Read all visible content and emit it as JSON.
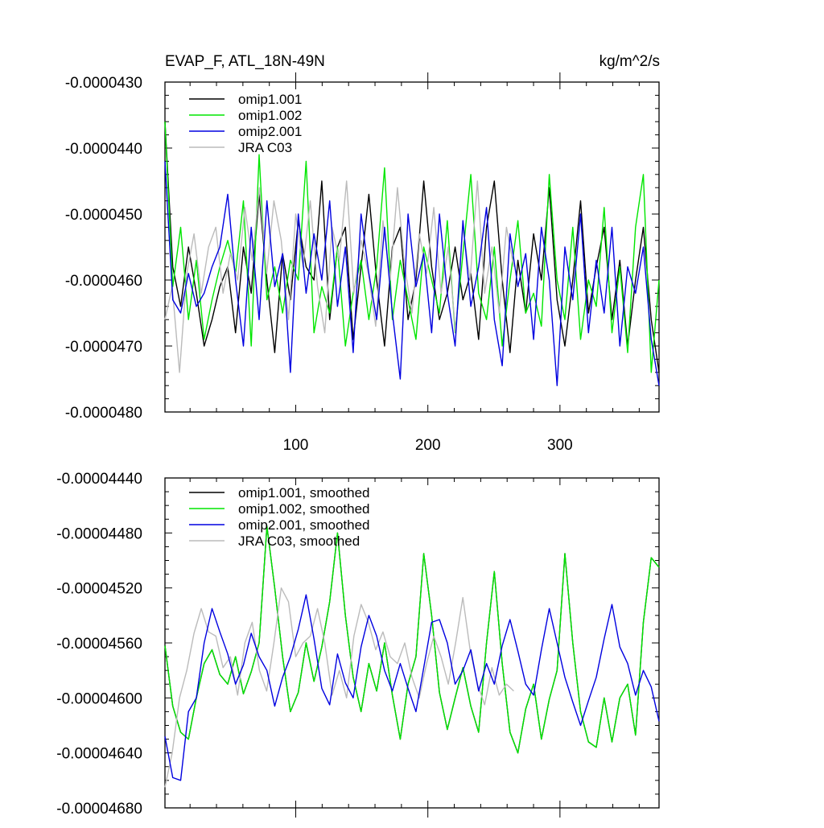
{
  "header": {
    "title": "EVAP_F, ATL_18N-49N",
    "units": "kg/m^2/s"
  },
  "chart_data": [
    {
      "type": "line",
      "title": "EVAP_F, ATL_18N-49N",
      "units": "kg/m^2/s",
      "xlim": [
        1,
        375
      ],
      "ylim": [
        -4.8e-05,
        -4.3e-05
      ],
      "xticks": [
        100,
        200,
        300
      ],
      "yticks": [
        "-0.0000430",
        "-0.0000440",
        "-0.0000450",
        "-0.0000460",
        "-0.0000470",
        "-0.0000480"
      ],
      "legend_position": "top-left",
      "series": [
        {
          "name": "omip1.001",
          "color": "#000000",
          "values": [
            -4.36e-05,
            -4.58e-05,
            -4.64e-05,
            -4.55e-05,
            -4.62e-05,
            -4.7e-05,
            -4.66e-05,
            -4.61e-05,
            -4.58e-05,
            -4.68e-05,
            -4.55e-05,
            -4.62e-05,
            -4.47e-05,
            -4.6e-05,
            -4.71e-05,
            -4.56e-05,
            -4.63e-05,
            -4.51e-05,
            -4.58e-05,
            -4.6e-05,
            -4.45e-05,
            -4.66e-05,
            -4.55e-05,
            -4.52e-05,
            -4.69e-05,
            -4.58e-05,
            -4.47e-05,
            -4.6e-05,
            -4.7e-05,
            -4.55e-05,
            -4.52e-05,
            -4.66e-05,
            -4.6e-05,
            -4.45e-05,
            -4.58e-05,
            -4.66e-05,
            -4.62e-05,
            -4.55e-05,
            -4.63e-05,
            -4.59e-05,
            -4.69e-05,
            -4.52e-05,
            -4.45e-05,
            -4.6e-05,
            -4.71e-05,
            -4.57e-05,
            -4.65e-05,
            -4.53e-05,
            -4.6e-05,
            -4.46e-05,
            -4.63e-05,
            -4.7e-05,
            -4.6e-05,
            -4.48e-05,
            -4.65e-05,
            -4.58e-05,
            -4.52e-05,
            -4.66e-05,
            -4.57e-05,
            -4.7e-05,
            -4.6e-05,
            -4.52e-05,
            -4.66e-05,
            -4.74e-05
          ]
        },
        {
          "name": "omip1.002",
          "color": "#00e600",
          "values": [
            -4.36e-05,
            -4.61e-05,
            -4.52e-05,
            -4.66e-05,
            -4.57e-05,
            -4.69e-05,
            -4.63e-05,
            -4.58e-05,
            -4.54e-05,
            -4.59e-05,
            -4.48e-05,
            -4.7e-05,
            -4.41e-05,
            -4.63e-05,
            -4.58e-05,
            -4.65e-05,
            -4.57e-05,
            -4.6e-05,
            -4.42e-05,
            -4.68e-05,
            -4.61e-05,
            -4.65e-05,
            -4.55e-05,
            -4.7e-05,
            -4.62e-05,
            -4.57e-05,
            -4.66e-05,
            -4.58e-05,
            -4.43e-05,
            -4.66e-05,
            -4.57e-05,
            -4.63e-05,
            -4.69e-05,
            -4.55e-05,
            -4.6e-05,
            -4.65e-05,
            -4.51e-05,
            -4.68e-05,
            -4.56e-05,
            -4.44e-05,
            -4.62e-05,
            -4.66e-05,
            -4.55e-05,
            -4.7e-05,
            -4.6e-05,
            -4.51e-05,
            -4.65e-05,
            -4.62e-05,
            -4.67e-05,
            -4.44e-05,
            -4.6e-05,
            -4.66e-05,
            -4.52e-05,
            -4.69e-05,
            -4.6e-05,
            -4.64e-05,
            -4.49e-05,
            -4.68e-05,
            -4.58e-05,
            -4.71e-05,
            -4.52e-05,
            -4.44e-05,
            -4.74e-05,
            -4.6e-05
          ]
        },
        {
          "name": "omip2.001",
          "color": "#0000e0",
          "values": [
            -4.42e-05,
            -4.63e-05,
            -4.65e-05,
            -4.59e-05,
            -4.64e-05,
            -4.62e-05,
            -4.58e-05,
            -4.55e-05,
            -4.47e-05,
            -4.6e-05,
            -4.7e-05,
            -4.52e-05,
            -4.66e-05,
            -4.48e-05,
            -4.61e-05,
            -4.56e-05,
            -4.74e-05,
            -4.5e-05,
            -4.62e-05,
            -4.53e-05,
            -4.6e-05,
            -4.48e-05,
            -4.64e-05,
            -4.55e-05,
            -4.71e-05,
            -4.5e-05,
            -4.59e-05,
            -4.66e-05,
            -4.52e-05,
            -4.65e-05,
            -4.75e-05,
            -4.5e-05,
            -4.61e-05,
            -4.56e-05,
            -4.68e-05,
            -4.5e-05,
            -4.62e-05,
            -4.7e-05,
            -4.51e-05,
            -4.64e-05,
            -4.58e-05,
            -4.49e-05,
            -4.66e-05,
            -4.73e-05,
            -4.53e-05,
            -4.61e-05,
            -4.56e-05,
            -4.69e-05,
            -4.52e-05,
            -4.6e-05,
            -4.76e-05,
            -4.55e-05,
            -4.63e-05,
            -4.5e-05,
            -4.68e-05,
            -4.57e-05,
            -4.65e-05,
            -4.52e-05,
            -4.7e-05,
            -4.58e-05,
            -4.62e-05,
            -4.55e-05,
            -4.69e-05,
            -4.76e-05
          ]
        },
        {
          "name": "JRA C03",
          "color": "#bbbbbb",
          "values": [
            -4.66e-05,
            -4.61e-05,
            -4.74e-05,
            -4.59e-05,
            -4.53e-05,
            -4.62e-05,
            -4.55e-05,
            -4.52e-05,
            -4.62e-05,
            -4.56e-05,
            -4.6e-05,
            -4.49e-05,
            -4.57e-05,
            -4.46e-05,
            -4.59e-05,
            -4.48e-05,
            -4.54e-05,
            -4.66e-05,
            -4.5e-05,
            -4.58e-05,
            -4.48e-05,
            -4.61e-05,
            -4.68e-05,
            -4.52e-05,
            -4.57e-05,
            -4.45e-05,
            -4.62e-05,
            -4.54e-05,
            -4.59e-05,
            -4.67e-05,
            -4.51e-05,
            -4.6e-05,
            -4.46e-05,
            -4.58e-05,
            -4.65e-05,
            -4.53e-05,
            -4.59e-05,
            -4.49e-05,
            -4.62e-05,
            -4.55e-05,
            -4.68e-05,
            -4.52e-05,
            -4.6e-05,
            -4.45e-05,
            -4.62e-05,
            -4.55e-05,
            -4.65e-05,
            -4.52e-05,
            -4.58e-05
          ]
        }
      ]
    },
    {
      "type": "line",
      "xlim": [
        1,
        375
      ],
      "ylim": [
        -4.68e-05,
        -4.44e-05
      ],
      "yticks": [
        "-0.00004440",
        "-0.00004480",
        "-0.00004520",
        "-0.00004560",
        "-0.00004600",
        "-0.00004640",
        "-0.00004680"
      ],
      "legend_position": "top-left",
      "series": [
        {
          "name": "omip1.001, smoothed",
          "color": "#000000",
          "values": [
            -4.562e-05,
            -4.606e-05,
            -4.625e-05,
            -4.63e-05,
            -4.6e-05,
            -4.575e-05,
            -4.565e-05,
            -4.583e-05,
            -4.59e-05,
            -4.57e-05,
            -4.597e-05,
            -4.581e-05,
            -4.56e-05,
            -4.475e-05,
            -4.52e-05,
            -4.57e-05,
            -4.61e-05,
            -4.596e-05,
            -4.56e-05,
            -4.588e-05,
            -4.563e-05,
            -4.53e-05,
            -4.48e-05,
            -4.54e-05,
            -4.585e-05,
            -4.61e-05,
            -4.575e-05,
            -4.595e-05,
            -4.56e-05,
            -4.598e-05,
            -4.63e-05,
            -4.59e-05,
            -4.57e-05,
            -4.495e-05,
            -4.54e-05,
            -4.596e-05,
            -4.623e-05,
            -4.6e-05,
            -4.578e-05,
            -4.606e-05,
            -4.625e-05,
            -4.56e-05,
            -4.508e-05,
            -4.575e-05,
            -4.625e-05,
            -4.64e-05,
            -4.608e-05,
            -4.59e-05,
            -4.63e-05,
            -4.601e-05,
            -4.58e-05,
            -4.495e-05,
            -4.56e-05,
            -4.61e-05,
            -4.632e-05,
            -4.636e-05,
            -4.6e-05,
            -4.632e-05,
            -4.6e-05,
            -4.59e-05,
            -4.627e-05,
            -4.545e-05,
            -4.498e-05,
            -4.505e-05
          ]
        },
        {
          "name": "omip1.002, smoothed",
          "color": "#00e600",
          "values": [
            -4.562e-05,
            -4.606e-05,
            -4.625e-05,
            -4.63e-05,
            -4.6e-05,
            -4.575e-05,
            -4.565e-05,
            -4.583e-05,
            -4.59e-05,
            -4.57e-05,
            -4.597e-05,
            -4.581e-05,
            -4.56e-05,
            -4.475e-05,
            -4.52e-05,
            -4.57e-05,
            -4.61e-05,
            -4.596e-05,
            -4.56e-05,
            -4.588e-05,
            -4.563e-05,
            -4.53e-05,
            -4.48e-05,
            -4.54e-05,
            -4.585e-05,
            -4.61e-05,
            -4.575e-05,
            -4.595e-05,
            -4.56e-05,
            -4.598e-05,
            -4.63e-05,
            -4.59e-05,
            -4.57e-05,
            -4.495e-05,
            -4.54e-05,
            -4.596e-05,
            -4.623e-05,
            -4.6e-05,
            -4.578e-05,
            -4.606e-05,
            -4.625e-05,
            -4.56e-05,
            -4.508e-05,
            -4.575e-05,
            -4.625e-05,
            -4.64e-05,
            -4.608e-05,
            -4.59e-05,
            -4.63e-05,
            -4.601e-05,
            -4.58e-05,
            -4.495e-05,
            -4.56e-05,
            -4.61e-05,
            -4.632e-05,
            -4.636e-05,
            -4.6e-05,
            -4.632e-05,
            -4.6e-05,
            -4.59e-05,
            -4.627e-05,
            -4.545e-05,
            -4.498e-05,
            -4.505e-05
          ]
        },
        {
          "name": "omip2.001, smoothed",
          "color": "#0000e0",
          "values": [
            -4.628e-05,
            -4.658e-05,
            -4.66e-05,
            -4.61e-05,
            -4.6e-05,
            -4.56e-05,
            -4.535e-05,
            -4.552e-05,
            -4.568e-05,
            -4.59e-05,
            -4.576e-05,
            -4.553e-05,
            -4.57e-05,
            -4.58e-05,
            -4.606e-05,
            -4.585e-05,
            -4.57e-05,
            -4.55e-05,
            -4.525e-05,
            -4.557e-05,
            -4.593e-05,
            -4.605e-05,
            -4.568e-05,
            -4.589e-05,
            -4.6e-05,
            -4.563e-05,
            -4.54e-05,
            -4.555e-05,
            -4.58e-05,
            -4.595e-05,
            -4.575e-05,
            -4.593e-05,
            -4.61e-05,
            -4.578e-05,
            -4.545e-05,
            -4.543e-05,
            -4.56e-05,
            -4.59e-05,
            -4.58e-05,
            -4.565e-05,
            -4.595e-05,
            -4.575e-05,
            -4.59e-05,
            -4.562e-05,
            -4.543e-05,
            -4.566e-05,
            -4.59e-05,
            -4.598e-05,
            -4.565e-05,
            -4.535e-05,
            -4.56e-05,
            -4.585e-05,
            -4.603e-05,
            -4.62e-05,
            -4.602e-05,
            -4.585e-05,
            -4.557e-05,
            -4.532e-05,
            -4.563e-05,
            -4.575e-05,
            -4.598e-05,
            -4.58e-05,
            -4.592e-05,
            -4.617e-05
          ]
        },
        {
          "name": "JRA C03, smoothed",
          "color": "#bbbbbb",
          "values": [
            -4.665e-05,
            -4.64e-05,
            -4.6e-05,
            -4.58e-05,
            -4.553e-05,
            -4.535e-05,
            -4.552e-05,
            -4.555e-05,
            -4.578e-05,
            -4.57e-05,
            -4.598e-05,
            -4.56e-05,
            -4.545e-05,
            -4.58e-05,
            -4.595e-05,
            -4.56e-05,
            -4.52e-05,
            -4.53e-05,
            -4.57e-05,
            -4.56e-05,
            -4.555e-05,
            -4.535e-05,
            -4.56e-05,
            -4.598e-05,
            -4.58e-05,
            -4.6e-05,
            -4.555e-05,
            -4.532e-05,
            -4.545e-05,
            -4.565e-05,
            -4.552e-05,
            -4.57e-05,
            -4.575e-05,
            -4.56e-05,
            -4.585e-05,
            -4.6e-05,
            -4.575e-05,
            -4.555e-05,
            -4.57e-05,
            -4.59e-05,
            -4.56e-05,
            -4.527e-05,
            -4.565e-05,
            -4.59e-05,
            -4.605e-05,
            -4.578e-05,
            -4.598e-05,
            -4.59e-05,
            -4.595e-05
          ]
        }
      ]
    }
  ]
}
